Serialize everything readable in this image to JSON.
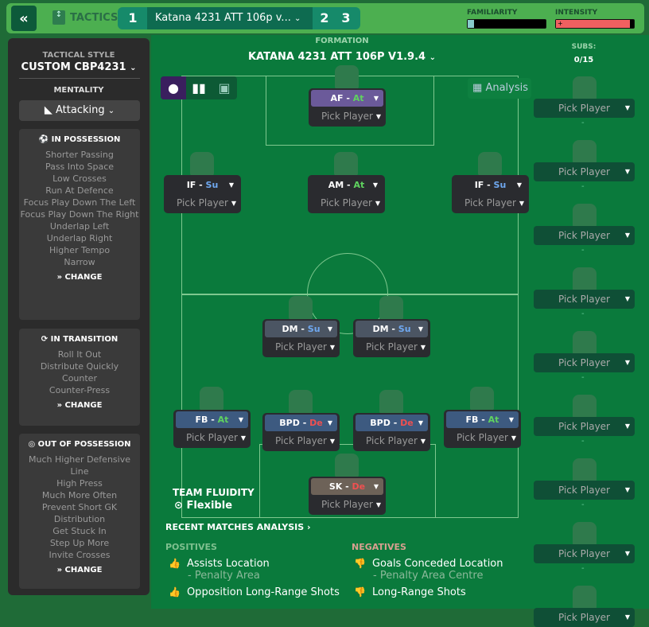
{
  "header": {
    "back_icon": "double-chevron-left",
    "tactics_label": "TACTICS",
    "tab1": "1",
    "selected_tactic": "Katana 4231 ATT 106p v...",
    "tab2": "2",
    "tab3": "3",
    "familiarity_label": "FAMILIARITY",
    "intensity_label": "INTENSITY",
    "familiarity_level": 0.05,
    "intensity_level": 0.95
  },
  "panel": {
    "style_label": "TACTICAL STYLE",
    "style_value": "CUSTOM CBP4231",
    "mentality_label": "MENTALITY",
    "mentality_value": "Attacking",
    "in_possession": {
      "title": "IN POSSESSION",
      "items": [
        "Shorter Passing",
        "Pass Into Space",
        "Low Crosses",
        "Run At Defence",
        "Focus Play Down The Left",
        "Focus Play Down The Right",
        "Underlap Left",
        "Underlap Right",
        "Higher Tempo",
        "Narrow"
      ],
      "change": "CHANGE"
    },
    "in_transition": {
      "title": "IN TRANSITION",
      "items": [
        "Roll It Out",
        "Distribute Quickly",
        "Counter",
        "Counter-Press"
      ],
      "change": "CHANGE"
    },
    "out_of_possession": {
      "title": "OUT OF POSSESSION",
      "items": [
        "Much Higher Defensive Line",
        "High Press",
        "Much More Often",
        "Prevent Short GK Distribution",
        "Get Stuck In",
        "Step Up More",
        "Invite Crosses"
      ],
      "change": "CHANGE"
    }
  },
  "formation": {
    "label": "FORMATION",
    "name": "KATANA 4231 ATT 106P V1.9.4",
    "analysis": "Analysis",
    "subs_label": "SUBS:",
    "subs_count": "0/15"
  },
  "positions": [
    {
      "role": "AF",
      "duty": "At",
      "pick": "Pick Player",
      "color": "#6b5a9a"
    },
    {
      "role": "IF",
      "duty": "Su",
      "pick": "Pick Player",
      "color": "#2a2b2f"
    },
    {
      "role": "AM",
      "duty": "At",
      "pick": "Pick Player",
      "color": "#2a2b2f"
    },
    {
      "role": "IF",
      "duty": "Su",
      "pick": "Pick Player",
      "color": "#2a2b2f"
    },
    {
      "role": "DM",
      "duty": "Su",
      "pick": "Pick Player",
      "color": "#4b5563"
    },
    {
      "role": "DM",
      "duty": "Su",
      "pick": "Pick Player",
      "color": "#4b5563"
    },
    {
      "role": "FB",
      "duty": "At",
      "pick": "Pick Player",
      "color": "#3d5a80"
    },
    {
      "role": "BPD",
      "duty": "De",
      "pick": "Pick Player",
      "color": "#3d5a80"
    },
    {
      "role": "BPD",
      "duty": "De",
      "pick": "Pick Player",
      "color": "#3d5a80"
    },
    {
      "role": "FB",
      "duty": "At",
      "pick": "Pick Player",
      "color": "#3d5a80"
    },
    {
      "role": "SK",
      "duty": "De",
      "pick": "Pick Player",
      "color": "#6d6258"
    }
  ],
  "duty_colors": {
    "At": "#5fd35f",
    "Su": "#6fa8f0",
    "De": "#f05050"
  },
  "subs": {
    "pick": "Pick Player",
    "dash": "-"
  },
  "fluidity": {
    "label": "TEAM FLUIDITY",
    "value": "Flexible"
  },
  "analysis": {
    "title": "RECENT MATCHES ANALYSIS",
    "positives_label": "POSITIVES",
    "negatives_label": "NEGATIVES",
    "positives": [
      {
        "text": "Assists Location",
        "detail": "- Penalty Area"
      },
      {
        "text": "Opposition Long-Range Shots",
        "detail": ""
      }
    ],
    "negatives": [
      {
        "text": "Goals Conceded Location",
        "detail": "- Penalty Area Centre"
      },
      {
        "text": "Long-Range Shots",
        "detail": ""
      }
    ]
  }
}
